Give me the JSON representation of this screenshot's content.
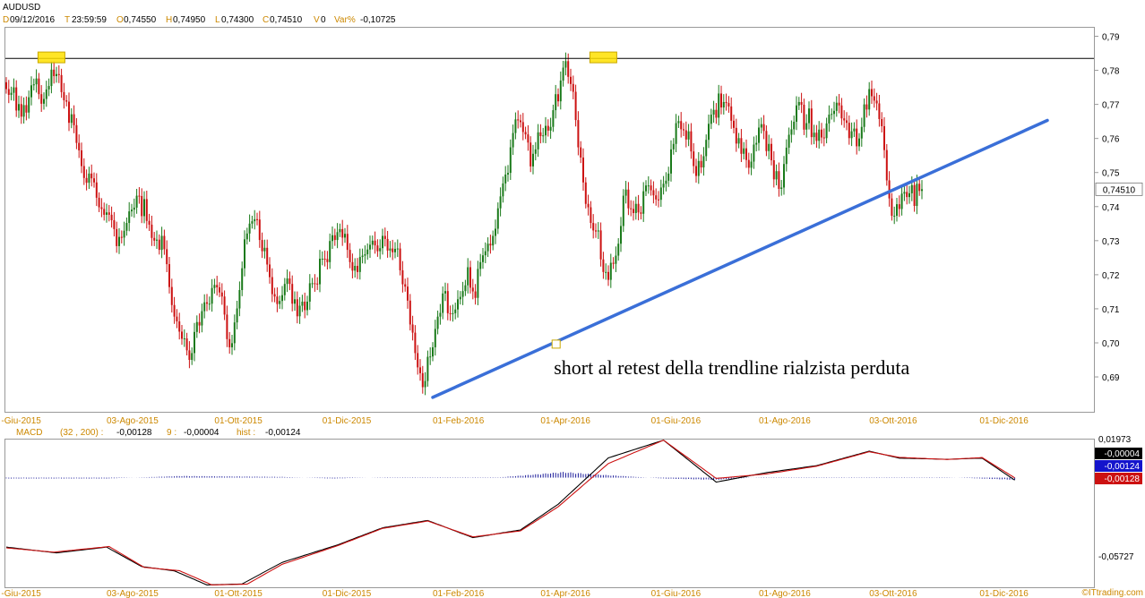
{
  "header": {
    "symbol": "AUDUSD",
    "date_key": "D",
    "date_val": "09/12/2016",
    "time_key": "T",
    "time_val": "23:59:59",
    "open_key": "O",
    "open_val": "0,74550",
    "high_key": "H",
    "high_val": "0,74950",
    "low_key": "L",
    "low_val": "0,74300",
    "close_key": "C",
    "close_val": "0,74510",
    "vol_key": "V",
    "vol_val": "0",
    "var_key": "Var%",
    "var_val": "-0,10725"
  },
  "colors": {
    "up": "#1a7a1a",
    "down": "#cc1111",
    "axis_label_orange": "#cc8800",
    "trendline": "#3a6fd8",
    "macd_line": "#000000",
    "signal_line": "#cc1111",
    "hist": "#1a1a99",
    "highlight": "#ffe000",
    "background": "#ffffff"
  },
  "chart_data": [
    {
      "type": "candlestick",
      "title": "AUDUSD",
      "y_ticks": [
        "0,79",
        "0,78",
        "0,77",
        "0,76",
        "0,75",
        "0,74",
        "0,73",
        "0,72",
        "0,71",
        "0,70",
        "0,69"
      ],
      "y_tick_values": [
        0.79,
        0.78,
        0.77,
        0.76,
        0.75,
        0.74,
        0.73,
        0.72,
        0.71,
        0.7,
        0.69
      ],
      "ylim": [
        0.6795,
        0.7925
      ],
      "x_labels": [
        "-Giu-2015",
        "03-Ago-2015",
        "01-Ott-2015",
        "01-Dic-2015",
        "01-Feb-2016",
        "01-Apr-2016",
        "01-Giu-2016",
        "01-Ago-2016",
        "03-Ott-2016",
        "01-Dic-2016"
      ],
      "x_label_index": [
        -2,
        40,
        83,
        126,
        170,
        213,
        257,
        300,
        344,
        388
      ],
      "bar_count": 404,
      "last_price_label": "0,74510",
      "horizontal_line": {
        "value": 0.7835
      },
      "trendline": {
        "from": {
          "index": 170,
          "value": 0.684
        },
        "to": {
          "index": 415,
          "value": 0.7653
        }
      },
      "highlights": [
        {
          "index": 18,
          "value": 0.7838
        },
        {
          "index": 238,
          "value": 0.7838
        }
      ],
      "annotation": {
        "text": "short al retest della trendline rialzista perduta",
        "anchor_index": 219,
        "anchor_value": 0.6995
      },
      "waypoints": [
        [
          0,
          0.776
        ],
        [
          6,
          0.766
        ],
        [
          11,
          0.778
        ],
        [
          15,
          0.769
        ],
        [
          20,
          0.781
        ],
        [
          25,
          0.767
        ],
        [
          29,
          0.757
        ],
        [
          33,
          0.748
        ],
        [
          40,
          0.738
        ],
        [
          45,
          0.728
        ],
        [
          52,
          0.742
        ],
        [
          58,
          0.731
        ],
        [
          62,
          0.73
        ],
        [
          66,
          0.712
        ],
        [
          73,
          0.694
        ],
        [
          79,
          0.712
        ],
        [
          86,
          0.718
        ],
        [
          90,
          0.702
        ],
        [
          96,
          0.73
        ],
        [
          100,
          0.735
        ],
        [
          104,
          0.725
        ],
        [
          109,
          0.714
        ],
        [
          113,
          0.722
        ],
        [
          119,
          0.709
        ],
        [
          124,
          0.72
        ],
        [
          130,
          0.727
        ],
        [
          135,
          0.735
        ],
        [
          141,
          0.722
        ],
        [
          147,
          0.727
        ],
        [
          153,
          0.73
        ],
        [
          159,
          0.727
        ],
        [
          163,
          0.712
        ],
        [
          167,
          0.698
        ],
        [
          170,
          0.687
        ],
        [
          174,
          0.698
        ],
        [
          179,
          0.712
        ],
        [
          184,
          0.706
        ],
        [
          189,
          0.72
        ],
        [
          195,
          0.716
        ],
        [
          201,
          0.727
        ],
        [
          206,
          0.744
        ],
        [
          211,
          0.758
        ],
        [
          216,
          0.764
        ],
        [
          222,
          0.752
        ],
        [
          227,
          0.759
        ],
        [
          233,
          0.768
        ],
        [
          238,
          0.779
        ],
        [
          242,
          0.773
        ],
        [
          246,
          0.76
        ],
        [
          249,
          0.742
        ],
        [
          253,
          0.732
        ],
        [
          257,
          0.726
        ],
        [
          262,
          0.718
        ],
        [
          265,
          0.722
        ],
        [
          269,
          0.744
        ],
        [
          274,
          0.736
        ],
        [
          279,
          0.746
        ],
        [
          283,
          0.74
        ],
        [
          289,
          0.753
        ],
        [
          294,
          0.766
        ],
        [
          299,
          0.756
        ],
        [
          303,
          0.748
        ],
        [
          309,
          0.763
        ],
        [
          314,
          0.772
        ],
        [
          319,
          0.767
        ],
        [
          325,
          0.759
        ],
        [
          330,
          0.752
        ],
        [
          335,
          0.762
        ],
        [
          340,
          0.751
        ],
        [
          346,
          0.77
        ],
        [
          351,
          0.762
        ],
        [
          356,
          0.766
        ],
        [
          361,
          0.76
        ],
        [
          366,
          0.771
        ],
        [
          371,
          0.766
        ],
        [
          376,
          0.774
        ],
        [
          379,
          0.762
        ],
        [
          383,
          0.748
        ],
        [
          386,
          0.734
        ],
        [
          389,
          0.738
        ],
        [
          393,
          0.744
        ],
        [
          397,
          0.739
        ],
        [
          400,
          0.747
        ],
        [
          403,
          0.7451
        ]
      ],
      "close": [
        0.7745,
        0.7728,
        0.7734,
        0.775,
        0.7682,
        0.7701,
        0.7664,
        0.7698,
        0.7676,
        0.7721,
        0.7756,
        0.7759,
        0.7776,
        0.773,
        0.7702,
        0.7716,
        0.7744,
        0.7754,
        0.7802,
        0.7783,
        0.7789,
        0.7786,
        0.7736,
        0.7712,
        0.7708,
        0.7646,
        0.7671,
        0.7639,
        0.7587,
        0.7565,
        0.7519,
        0.7484,
        0.747,
        0.7497,
        0.7483,
        0.7471,
        0.7426,
        0.7398,
        0.7393,
        0.7376,
        0.7383,
        0.7376,
        0.736,
        0.7334,
        0.7284,
        0.7311,
        0.7309,
        0.7329,
        0.7352,
        0.7386,
        0.7391,
        0.7397,
        0.7432,
        0.7431,
        0.7372,
        0.7422,
        0.7358,
        0.7347,
        0.7308,
        0.73,
        0.7303,
        0.7273,
        0.7314,
        0.7275,
        0.7231,
        0.7164,
        0.7111,
        0.7077,
        0.7063,
        0.7033,
        0.7012,
        0.7013,
        0.6978,
        0.695,
        0.697,
        0.7032,
        0.7061,
        0.7051,
        0.7093,
        0.7119,
        0.7115,
        0.7115,
        0.7161,
        0.717,
        0.7163,
        0.7148,
        0.7136,
        0.7083,
        0.7011,
        0.6987,
        0.6999,
        0.706,
        0.7101,
        0.7155,
        0.7219,
        0.7304,
        0.7321,
        0.735,
        0.7357,
        0.7363,
        0.7362,
        0.7302,
        0.7269,
        0.7279,
        0.723,
        0.7193,
        0.7143,
        0.7136,
        0.7114,
        0.7123,
        0.714,
        0.7173,
        0.7189,
        0.7173,
        0.7115,
        0.7128,
        0.7078,
        0.7109,
        0.7121,
        0.7096,
        0.7121,
        0.7175,
        0.7175,
        0.7174,
        0.7172,
        0.7247,
        0.7247,
        0.7246,
        0.7237,
        0.7299,
        0.7316,
        0.7302,
        0.7325,
        0.7334,
        0.7309,
        0.732,
        0.7273,
        0.7237,
        0.7212,
        0.7226,
        0.7208,
        0.7252,
        0.7256,
        0.726,
        0.7274,
        0.7288,
        0.73,
        0.7286,
        0.7269,
        0.7278,
        0.7314,
        0.7305,
        0.7271,
        0.7277,
        0.7266,
        0.7276,
        0.7277,
        0.7213,
        0.7172,
        0.7165,
        0.7124,
        0.7054,
        0.703,
        0.697,
        0.6928,
        0.6911,
        0.687,
        0.6888,
        0.6959,
        0.696,
        0.6987,
        0.7041,
        0.7077,
        0.7088,
        0.7145,
        0.7152,
        0.7087,
        0.7085,
        0.7087,
        0.7098,
        0.7128,
        0.7135,
        0.7152,
        0.7169,
        0.7222,
        0.7162,
        0.7151,
        0.7132,
        0.7217,
        0.7237,
        0.7257,
        0.7269,
        0.7291,
        0.7286,
        0.7314,
        0.7335,
        0.7395,
        0.743,
        0.7468,
        0.7494,
        0.7499,
        0.7574,
        0.7616,
        0.7656,
        0.7653,
        0.7648,
        0.7619,
        0.7612,
        0.7588,
        0.7518,
        0.7555,
        0.7568,
        0.7618,
        0.7607,
        0.7609,
        0.7637,
        0.7623,
        0.7634,
        0.7683,
        0.773,
        0.7709,
        0.777,
        0.7808,
        0.7827,
        0.7781,
        0.776,
        0.7737,
        0.7654,
        0.7574,
        0.7544,
        0.7471,
        0.7408,
        0.7398,
        0.7352,
        0.733,
        0.7327,
        0.733,
        0.7245,
        0.7208,
        0.7208,
        0.7185,
        0.7235,
        0.7232,
        0.7256,
        0.7291,
        0.7343,
        0.7432,
        0.745,
        0.7395,
        0.7393,
        0.7381,
        0.7408,
        0.7383,
        0.7379,
        0.7445,
        0.7462,
        0.7462,
        0.7448,
        0.7433,
        0.7421,
        0.742,
        0.7456,
        0.7467,
        0.7476,
        0.7497,
        0.7568,
        0.7584,
        0.7645,
        0.7651,
        0.7627,
        0.7624,
        0.7597,
        0.7621,
        0.7562,
        0.7519,
        0.749,
        0.7534,
        0.7515,
        0.7548,
        0.7596,
        0.7643,
        0.767,
        0.7684,
        0.7661,
        0.7732,
        0.7691,
        0.7707,
        0.7704,
        0.7694,
        0.7652,
        0.7631,
        0.7585,
        0.7601,
        0.7555,
        0.7571,
        0.7537,
        0.7514,
        0.7532,
        0.7582,
        0.7587,
        0.7632,
        0.7642,
        0.7622,
        0.7563,
        0.7584,
        0.7536,
        0.748,
        0.7504,
        0.7452,
        0.7456,
        0.7525,
        0.7573,
        0.7611,
        0.7627,
        0.7649,
        0.7697,
        0.7707,
        0.7699,
        0.7626,
        0.7645,
        0.7688,
        0.7604,
        0.7617,
        0.7593,
        0.7626,
        0.7603,
        0.7601,
        0.7644,
        0.767,
        0.7672,
        0.7681,
        0.7705,
        0.7697,
        0.7659,
        0.7653,
        0.7646,
        0.7601,
        0.7621,
        0.7629,
        0.7577,
        0.76,
        0.7634,
        0.77,
        0.7685,
        0.7745,
        0.7724,
        0.7711,
        0.7703,
        0.7657,
        0.7636,
        0.7566,
        0.7477,
        0.7424,
        0.7373,
        0.7373,
        0.7407,
        0.7393,
        0.7438,
        0.7443,
        0.7428,
        0.7439,
        0.7463,
        0.7402,
        0.7467,
        0.7446,
        0.7451
      ],
      "source_label": "©ITtrading.com"
    },
    {
      "type": "line",
      "title": "MACD",
      "params": "(32 , 200) :",
      "macd_val": "-0,00128",
      "signal_params": "9 :",
      "signal_val": "-0,00004",
      "hist_label": "hist :",
      "hist_val": "-0,00124",
      "y_top_label": "0,01973",
      "y_bottom_label": "-0,05727",
      "ylim": [
        -0.05727,
        0.01973
      ],
      "value_boxes": [
        {
          "text": "-0,00004",
          "bg": "#000000"
        },
        {
          "text": "-0,00124",
          "bg": "#1414cc"
        },
        {
          "text": "-0,00128",
          "bg": "#cc1111"
        }
      ],
      "series": [
        {
          "name": "MACD",
          "points": [
            [
              0,
              -0.036
            ],
            [
              20,
              -0.039
            ],
            [
              40,
              -0.036
            ],
            [
              54,
              -0.0461
            ],
            [
              67,
              -0.0483
            ],
            [
              80,
              -0.0556
            ],
            [
              94,
              -0.0551
            ],
            [
              110,
              -0.0439
            ],
            [
              132,
              -0.0349
            ],
            [
              150,
              -0.026
            ],
            [
              168,
              -0.0222
            ],
            [
              186,
              -0.0311
            ],
            [
              205,
              -0.0271
            ],
            [
              220,
              -0.0138
            ],
            [
              240,
              0.0102
            ],
            [
              262,
              0.0194
            ],
            [
              283,
              -0.0023
            ],
            [
              303,
              0.0026
            ],
            [
              323,
              0.0062
            ],
            [
              344,
              0.0137
            ],
            [
              356,
              0.0101
            ],
            [
              375,
              0.0095
            ],
            [
              389,
              0.0101
            ],
            [
              402,
              -0.0013
            ]
          ]
        },
        {
          "name": "Signal",
          "points": [
            [
              0,
              -0.0364
            ],
            [
              19,
              -0.0386
            ],
            [
              41,
              -0.0357
            ],
            [
              55,
              -0.0465
            ],
            [
              69,
              -0.0482
            ],
            [
              82,
              -0.0556
            ],
            [
              96,
              -0.0552
            ],
            [
              110,
              -0.0449
            ],
            [
              132,
              -0.0353
            ],
            [
              150,
              -0.0263
            ],
            [
              168,
              -0.0225
            ],
            [
              186,
              -0.0307
            ],
            [
              205,
              -0.0276
            ],
            [
              220,
              -0.0151
            ],
            [
              240,
              0.0073
            ],
            [
              262,
              0.0194
            ],
            [
              283,
              -0.0004
            ],
            [
              303,
              0.0019
            ],
            [
              323,
              0.0059
            ],
            [
              344,
              0.0134
            ],
            [
              356,
              0.0105
            ],
            [
              375,
              0.0094
            ],
            [
              389,
              0.0104
            ],
            [
              402,
              -0.0001
            ]
          ]
        }
      ],
      "histogram": [
        [
          0,
          -0.0005
        ],
        [
          40,
          -0.0005
        ],
        [
          70,
          0.0009
        ],
        [
          110,
          0.0004
        ],
        [
          130,
          -0.0005
        ],
        [
          150,
          0.0002
        ],
        [
          175,
          0.0002
        ],
        [
          197,
          0.0002
        ],
        [
          222,
          0.003
        ],
        [
          238,
          0.0015
        ],
        [
          262,
          -0.0005
        ],
        [
          283,
          -0.0012
        ],
        [
          300,
          0.0002
        ],
        [
          340,
          0.0002
        ],
        [
          375,
          0.0002
        ],
        [
          402,
          -0.0012
        ]
      ],
      "x_labels": [
        "-Giu-2015",
        "03-Ago-2015",
        "01-Ott-2015",
        "01-Dic-2015",
        "01-Feb-2016",
        "01-Apr-2016",
        "01-Giu-2016",
        "01-Ago-2016",
        "03-Ott-2016",
        "01-Dic-2016"
      ]
    }
  ]
}
